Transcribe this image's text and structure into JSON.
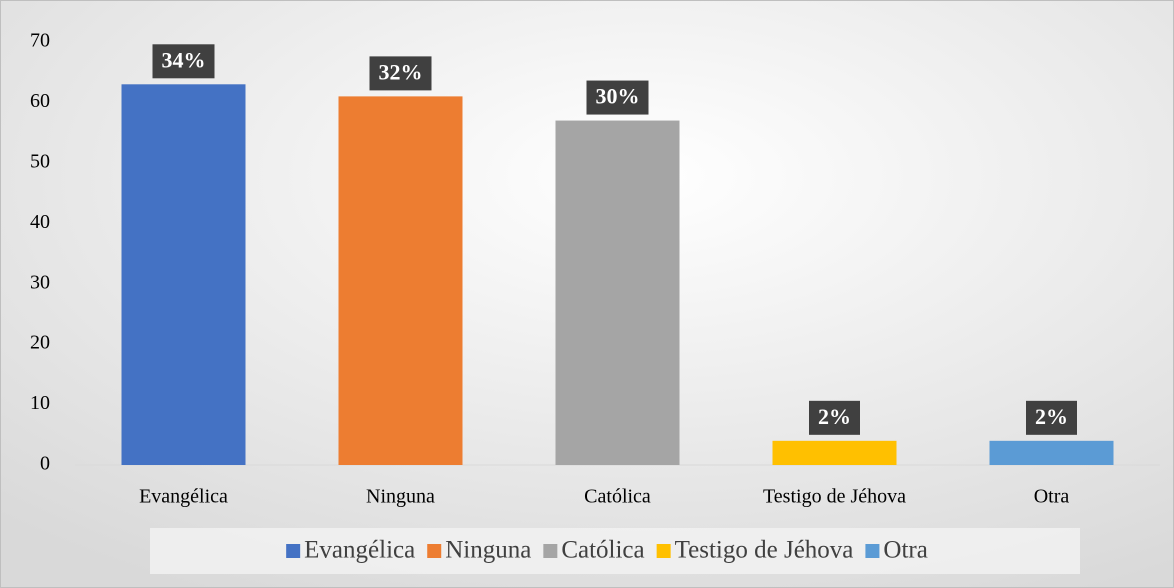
{
  "chart_data": {
    "type": "bar",
    "categories": [
      "Evangélica",
      "Ninguna",
      "Católica",
      "Testigo de Jéhova",
      "Otra"
    ],
    "values": [
      63,
      61,
      57,
      4,
      4
    ],
    "percent_labels": [
      "34%",
      "32%",
      "30%",
      "2%",
      "2%"
    ],
    "colors": [
      "#4472c4",
      "#ed7d31",
      "#a5a5a5",
      "#ffc000",
      "#5b9bd5"
    ],
    "ylim": [
      0,
      70
    ],
    "yticks": [
      0,
      10,
      20,
      30,
      40,
      50,
      60,
      70
    ],
    "grid": false,
    "legend": "bottom"
  }
}
